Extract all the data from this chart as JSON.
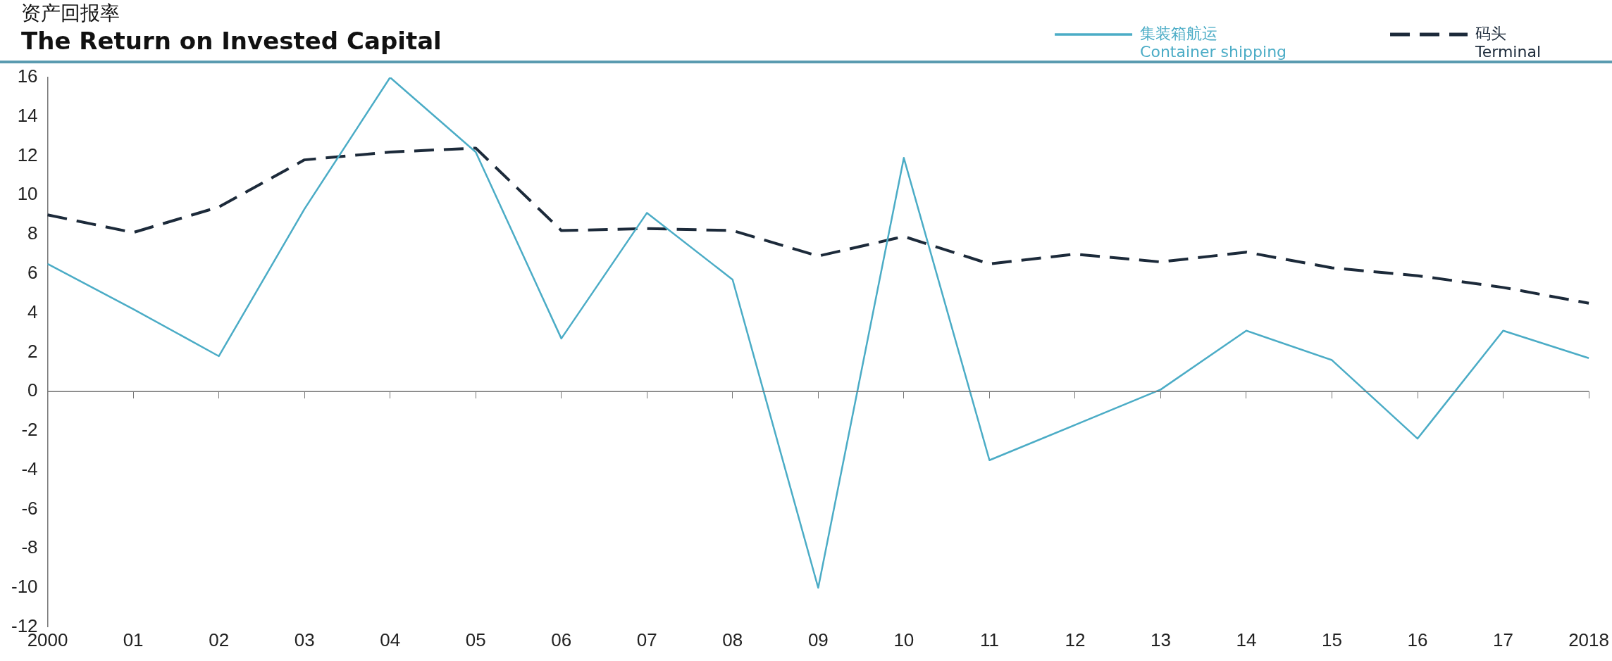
{
  "chart_data": {
    "type": "line",
    "title": "资产回报率",
    "subtitle": "The Return on Invested Capital",
    "categories": [
      "2000",
      "01",
      "02",
      "03",
      "04",
      "05",
      "06",
      "07",
      "08",
      "09",
      "10",
      "11",
      "12",
      "13",
      "14",
      "15",
      "16",
      "17",
      "2018"
    ],
    "series": [
      {
        "name": "集装箱航运\nContainer shipping",
        "color": "#4bacc6",
        "line_style": "solid",
        "values": [
          6.5,
          4.2,
          1.8,
          9.3,
          16,
          12.2,
          2.7,
          9.1,
          5.7,
          -10,
          11.9,
          -3.5,
          -1.7,
          0.1,
          3.1,
          1.6,
          -2.4,
          3.1,
          1.7
        ]
      },
      {
        "name": "码头\nTerminal",
        "color": "#1c2a3a",
        "line_style": "dashed",
        "values": [
          9.0,
          8.1,
          9.4,
          11.8,
          12.2,
          12.4,
          8.2,
          8.3,
          8.2,
          6.9,
          7.9,
          6.5,
          7.0,
          6.6,
          7.1,
          6.3,
          5.9,
          5.3,
          4.5
        ]
      }
    ],
    "ref_lines": [
      {
        "axis": "y",
        "value": 0,
        "color": "#777777",
        "line_style": "solid"
      }
    ],
    "ylim": [
      -12,
      16
    ],
    "yticks": [
      -12,
      -10,
      -8,
      -6,
      -4,
      -2,
      0,
      2,
      4,
      6,
      8,
      10,
      12,
      14,
      16
    ],
    "grid": false,
    "legend": "top right",
    "marker": "none"
  }
}
